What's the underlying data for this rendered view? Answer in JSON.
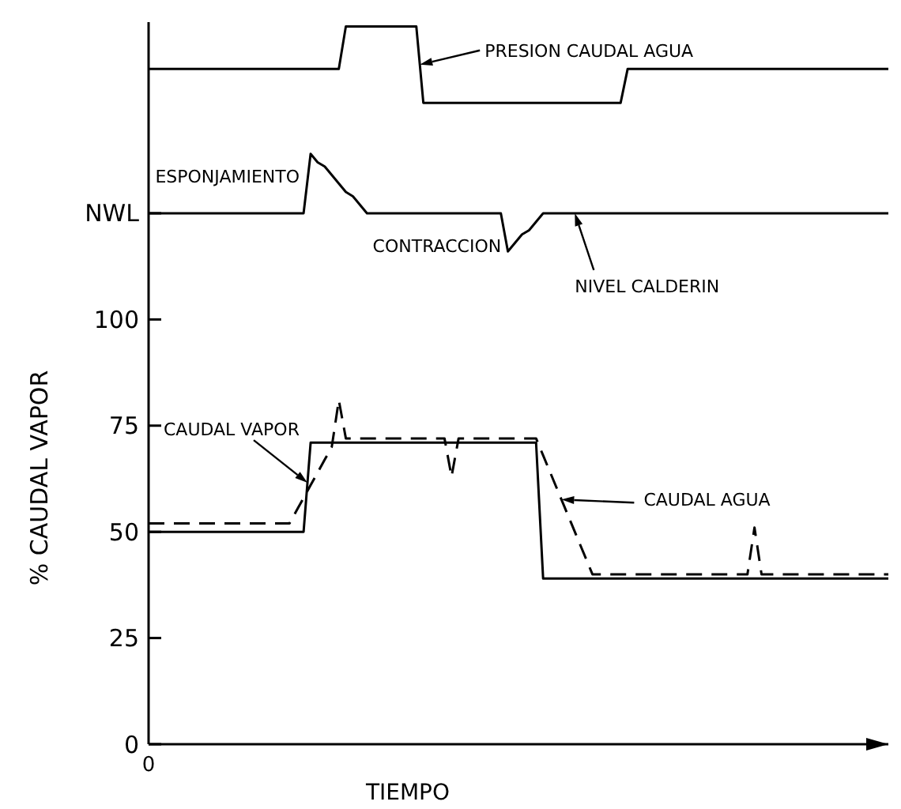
{
  "chart_data": {
    "type": "line",
    "xlabel": "TIEMPO",
    "ylabel": "% CAUDAL VAPOR",
    "categories": [
      "0",
      null,
      null,
      null,
      null,
      null,
      null,
      null,
      null,
      null,
      null,
      null,
      null,
      null,
      null,
      null,
      null,
      null,
      null,
      null,
      null,
      null,
      null,
      null,
      null,
      null,
      null,
      null,
      null,
      null,
      null,
      null,
      null,
      null,
      null,
      null,
      null,
      null,
      null,
      null,
      null,
      null,
      null,
      null,
      null,
      null,
      null,
      null,
      null,
      null,
      null,
      null,
      null,
      null,
      null,
      null,
      null,
      null,
      null,
      null,
      null,
      null,
      null,
      null,
      null,
      null,
      null,
      null,
      null,
      null,
      null,
      null,
      null,
      null,
      null,
      null,
      null,
      null,
      null,
      null,
      null,
      null,
      null,
      null,
      null,
      null,
      null,
      null,
      null,
      null,
      null,
      null,
      null,
      null,
      null,
      null,
      null,
      null,
      null,
      null,
      null,
      null,
      null,
      null,
      null,
      null
    ],
    "ylim": [
      0,
      170
    ],
    "yticks": [
      0,
      25,
      50,
      75,
      100,
      {
        "value": 125,
        "label": "NWL"
      }
    ],
    "marker": "none",
    "series": [
      {
        "name": "PRESION CAUDAL AGUA",
        "color": "#000000",
        "line_style": "solid",
        "values": [
          159,
          159,
          159,
          159,
          159,
          159,
          159,
          159,
          159,
          159,
          159,
          159,
          159,
          159,
          159,
          159,
          159,
          159,
          159,
          159,
          159,
          159,
          159,
          159,
          159,
          159,
          159,
          159,
          169,
          169,
          169,
          169,
          169,
          169,
          169,
          169,
          169,
          169,
          169,
          151,
          151,
          151,
          151,
          151,
          151,
          151,
          151,
          151,
          151,
          151,
          151,
          151,
          151,
          151,
          151,
          151,
          151,
          151,
          151,
          151,
          151,
          151,
          151,
          151,
          151,
          151,
          151,
          151,
          159,
          159,
          159,
          159,
          159,
          159,
          159,
          159,
          159,
          159,
          159,
          159,
          159,
          159,
          159,
          159,
          159,
          159,
          159,
          159,
          159,
          159,
          159,
          159,
          159,
          159,
          159,
          159,
          159,
          159,
          159,
          159,
          159,
          159,
          159,
          159,
          159,
          159
        ]
      },
      {
        "name": "NIVEL CALDERIN",
        "color": "#000000",
        "line_style": "solid",
        "values": [
          125,
          125,
          125,
          125,
          125,
          125,
          125,
          125,
          125,
          125,
          125,
          125,
          125,
          125,
          125,
          125,
          125,
          125,
          125,
          125,
          125,
          125,
          125,
          139,
          137,
          136,
          134,
          132,
          130,
          129,
          127,
          125,
          125,
          125,
          125,
          125,
          125,
          125,
          125,
          125,
          125,
          125,
          125,
          125,
          125,
          125,
          125,
          125,
          125,
          125,
          125,
          116,
          118,
          120,
          121,
          123,
          125,
          125,
          125,
          125,
          125,
          125,
          125,
          125,
          125,
          125,
          125,
          125,
          125,
          125,
          125,
          125,
          125,
          125,
          125,
          125,
          125,
          125,
          125,
          125,
          125,
          125,
          125,
          125,
          125,
          125,
          125,
          125,
          125,
          125,
          125,
          125,
          125,
          125,
          125,
          125,
          125,
          125,
          125,
          125,
          125,
          125,
          125,
          125,
          125,
          125
        ]
      },
      {
        "name": "CAUDAL VAPOR",
        "color": "#000000",
        "line_style": "solid",
        "values": [
          50,
          50,
          50,
          50,
          50,
          50,
          50,
          50,
          50,
          50,
          50,
          50,
          50,
          50,
          50,
          50,
          50,
          50,
          50,
          50,
          50,
          50,
          50,
          71,
          71,
          71,
          71,
          71,
          71,
          71,
          71,
          71,
          71,
          71,
          71,
          71,
          71,
          71,
          71,
          71,
          71,
          71,
          71,
          71,
          71,
          71,
          71,
          71,
          71,
          71,
          71,
          71,
          71,
          71,
          71,
          71,
          39,
          39,
          39,
          39,
          39,
          39,
          39,
          39,
          39,
          39,
          39,
          39,
          39,
          39,
          39,
          39,
          39,
          39,
          39,
          39,
          39,
          39,
          39,
          39,
          39,
          39,
          39,
          39,
          39,
          39,
          39,
          39,
          39,
          39,
          39,
          39,
          39,
          39,
          39,
          39,
          39,
          39,
          39,
          39,
          39,
          39,
          39,
          39,
          39,
          39
        ]
      },
      {
        "name": "CAUDAL AGUA",
        "color": "#000000",
        "line_style": "dashed",
        "values": [
          52,
          52,
          52,
          52,
          52,
          52,
          52,
          52,
          52,
          52,
          52,
          52,
          52,
          52,
          52,
          52,
          52,
          52,
          52,
          52,
          52,
          55,
          58,
          61,
          64,
          67,
          70,
          81,
          72,
          72,
          72,
          72,
          72,
          72,
          72,
          72,
          72,
          72,
          72,
          72,
          72,
          72,
          72,
          63,
          72,
          72,
          72,
          72,
          72,
          72,
          72,
          72,
          72,
          72,
          72,
          72,
          68,
          64,
          60,
          56,
          52,
          48,
          44,
          40,
          40,
          40,
          40,
          40,
          40,
          40,
          40,
          40,
          40,
          40,
          40,
          40,
          40,
          40,
          40,
          40,
          40,
          40,
          40,
          40,
          40,
          40,
          51,
          40,
          40,
          40,
          40,
          40,
          40,
          40,
          40,
          40,
          40,
          40,
          40,
          40,
          40,
          40,
          40,
          40,
          40,
          40
        ]
      }
    ],
    "legend": "right",
    "annotations": [
      "ESPONJAMIENTO",
      "CONTRACCION"
    ]
  }
}
